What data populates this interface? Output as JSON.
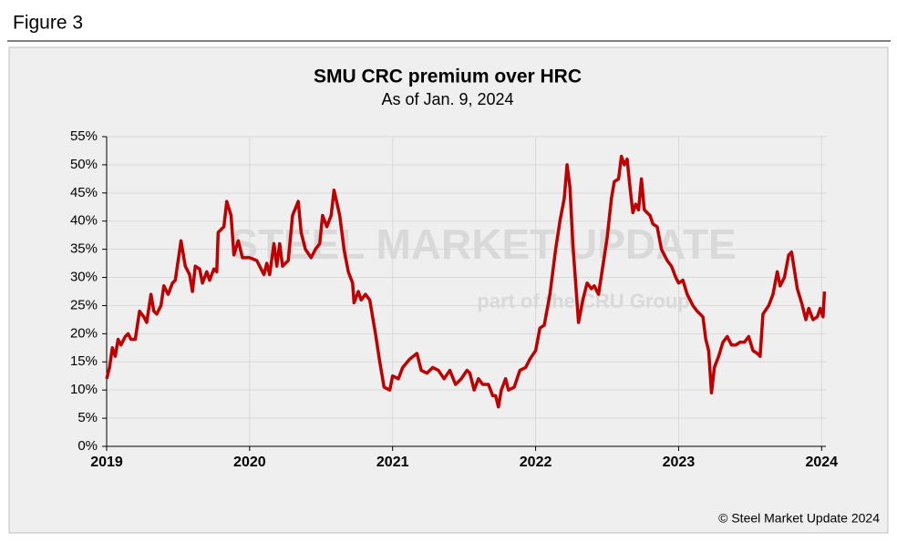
{
  "figure_label": "Figure 3",
  "chart_data": {
    "type": "line",
    "title": "SMU CRC premium over HRC",
    "subtitle": "As of Jan. 9, 2024",
    "watermark": [
      "STEEL MARKET UPDATE",
      "part of the CRU Group"
    ],
    "source": "© Steel Market Update 2024",
    "xlim": [
      2019,
      2024.03
    ],
    "xticks": [
      2019,
      2020,
      2021,
      2022,
      2023,
      2024
    ],
    "ylim": [
      0,
      55
    ],
    "yticks": [
      {
        "value": 0,
        "label": "0%"
      },
      {
        "value": 5,
        "label": "5%"
      },
      {
        "value": 10,
        "label": "10%"
      },
      {
        "value": 15,
        "label": "15%"
      },
      {
        "value": 20,
        "label": "20%"
      },
      {
        "value": 25,
        "label": "25%"
      },
      {
        "value": 30,
        "label": "30%"
      },
      {
        "value": 35,
        "label": "35%"
      },
      {
        "value": 40,
        "label": "40%"
      },
      {
        "value": 45,
        "label": "45%"
      },
      {
        "value": 50,
        "label": "50%"
      },
      {
        "value": 55,
        "label": "55%"
      }
    ],
    "grid": true,
    "series": [
      {
        "color": "#c00000",
        "x": [
          2019.0,
          2019.02,
          2019.04,
          2019.06,
          2019.08,
          2019.1,
          2019.13,
          2019.15,
          2019.17,
          2019.2,
          2019.23,
          2019.26,
          2019.28,
          2019.31,
          2019.33,
          2019.35,
          2019.38,
          2019.4,
          2019.43,
          2019.46,
          2019.48,
          2019.5,
          2019.52,
          2019.55,
          2019.58,
          2019.6,
          2019.62,
          2019.65,
          2019.67,
          2019.7,
          2019.72,
          2019.75,
          2019.77,
          2019.78,
          2019.82,
          2019.84,
          2019.87,
          2019.89,
          2019.92,
          2019.95,
          2020.0,
          2020.05,
          2020.08,
          2020.1,
          2020.12,
          2020.14,
          2020.17,
          2020.19,
          2020.21,
          2020.23,
          2020.27,
          2020.3,
          2020.34,
          2020.36,
          2020.39,
          2020.43,
          2020.46,
          2020.49,
          2020.51,
          2020.54,
          2020.57,
          2020.59,
          2020.63,
          2020.66,
          2020.69,
          2020.72,
          2020.73,
          2020.76,
          2020.78,
          2020.81,
          2020.84,
          2020.88,
          2020.91,
          2020.94,
          2020.98,
          2021.0,
          2021.04,
          2021.07,
          2021.12,
          2021.17,
          2021.2,
          2021.24,
          2021.28,
          2021.32,
          2021.36,
          2021.4,
          2021.44,
          2021.48,
          2021.52,
          2021.54,
          2021.57,
          2021.6,
          2021.63,
          2021.67,
          2021.7,
          2021.72,
          2021.74,
          2021.76,
          2021.79,
          2021.81,
          2021.85,
          2021.89,
          2021.93,
          2021.96,
          2022.0,
          2022.03,
          2022.06,
          2022.1,
          2022.14,
          2022.17,
          2022.2,
          2022.22,
          2022.24,
          2022.26,
          2022.3,
          2022.33,
          2022.36,
          2022.39,
          2022.41,
          2022.44,
          2022.47,
          2022.5,
          2022.53,
          2022.55,
          2022.58,
          2022.6,
          2022.62,
          2022.64,
          2022.66,
          2022.68,
          2022.7,
          2022.72,
          2022.74,
          2022.76,
          2022.78,
          2022.8,
          2022.82,
          2022.85,
          2022.88,
          2022.92,
          2022.95,
          2022.98,
          2023.0,
          2023.03,
          2023.06,
          2023.1,
          2023.13,
          2023.17,
          2023.19,
          2023.21,
          2023.23,
          2023.25,
          2023.28,
          2023.31,
          2023.34,
          2023.37,
          2023.4,
          2023.43,
          2023.46,
          2023.49,
          2023.52,
          2023.55,
          2023.57,
          2023.59,
          2023.63,
          2023.66,
          2023.69,
          2023.71,
          2023.74,
          2023.77,
          2023.79,
          2023.83,
          2023.86,
          2023.89,
          2023.91,
          2023.94,
          2023.97,
          2023.99,
          2024.01,
          2024.02
        ],
        "values": [
          12,
          14,
          17.5,
          16,
          19,
          18,
          19.5,
          20,
          19,
          19,
          24,
          23,
          22,
          27,
          24,
          23.5,
          25,
          28.5,
          27,
          29,
          29.5,
          33,
          36.5,
          32,
          30.5,
          27.5,
          32,
          31.5,
          29,
          31,
          29.5,
          31.5,
          31,
          38,
          39,
          43.5,
          41,
          34,
          36.5,
          33.5,
          33.5,
          33,
          31.5,
          30.5,
          32.5,
          30.5,
          36,
          32,
          36,
          32,
          33,
          41,
          43.5,
          38,
          35,
          33.5,
          35,
          36,
          41,
          39,
          41,
          45.5,
          41,
          35,
          31,
          29,
          25.5,
          27.5,
          26,
          27,
          26,
          20,
          15,
          10.5,
          10,
          12.5,
          12,
          14,
          15.5,
          16.5,
          13.5,
          13,
          14,
          13.5,
          12,
          13.5,
          11,
          12,
          13.5,
          13,
          10,
          12,
          11,
          11,
          9,
          9,
          7,
          10,
          12,
          10,
          10.5,
          13.5,
          14,
          15.5,
          17,
          21,
          21.5,
          27,
          35,
          40,
          44,
          50,
          46,
          36,
          22,
          26,
          29,
          28,
          28.5,
          27,
          32,
          37,
          44,
          47,
          47.5,
          51.5,
          50,
          51,
          46,
          41.5,
          43,
          42,
          47.5,
          42,
          41.5,
          41,
          39.5,
          39,
          35,
          33,
          32,
          30,
          29,
          29.5,
          27,
          25,
          24,
          23,
          19,
          17,
          9.5,
          14,
          16,
          18.5,
          19.5,
          18,
          18,
          18.5,
          18.5,
          19.5,
          17,
          16.5,
          16,
          23.5,
          25,
          27,
          31,
          28.5,
          30,
          34,
          34.5,
          28,
          25.5,
          22.5,
          24.5,
          22.5,
          23,
          24.5,
          23,
          27.5
        ]
      }
    ]
  }
}
